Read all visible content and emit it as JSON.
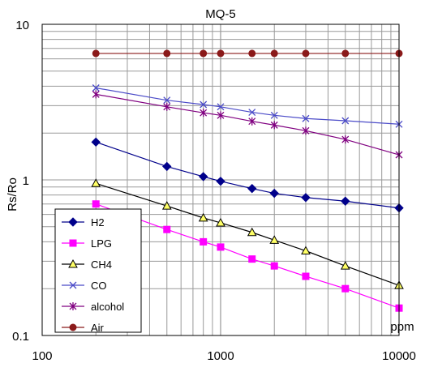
{
  "chart_data": {
    "type": "line",
    "title": "MQ-5",
    "xlabel": "ppm",
    "ylabel": "Rs/Ro",
    "xscale": "log",
    "yscale": "log",
    "xlim": [
      100,
      10000
    ],
    "ylim": [
      0.1,
      10
    ],
    "x_tick_labels": [
      "100",
      "1000",
      "10000"
    ],
    "y_tick_labels": [
      "0.1",
      "1",
      "10"
    ],
    "grid": true,
    "legend_position": "bottom-left",
    "x": [
      200,
      500,
      800,
      1000,
      1500,
      2000,
      3000,
      5000,
      10000
    ],
    "series": [
      {
        "name": "H2",
        "color": "#00008b",
        "marker": "diamond",
        "values": [
          1.75,
          1.22,
          1.05,
          0.98,
          0.88,
          0.82,
          0.77,
          0.73,
          0.66
        ]
      },
      {
        "name": "LPG",
        "color": "#ff00ff",
        "marker": "square",
        "values": [
          0.7,
          0.48,
          0.4,
          0.37,
          0.31,
          0.28,
          0.24,
          0.2,
          0.15
        ]
      },
      {
        "name": "CH4",
        "color": "#000000",
        "marker": "triangle",
        "values": [
          0.95,
          0.68,
          0.57,
          0.53,
          0.46,
          0.41,
          0.35,
          0.28,
          0.21
        ]
      },
      {
        "name": "CO",
        "color": "#4b4bc8",
        "marker": "x",
        "values": [
          3.9,
          3.25,
          3.05,
          2.95,
          2.72,
          2.6,
          2.48,
          2.4,
          2.28
        ]
      },
      {
        "name": "alcohol",
        "color": "#800080",
        "marker": "star",
        "values": [
          3.55,
          2.95,
          2.7,
          2.6,
          2.38,
          2.25,
          2.07,
          1.82,
          1.45
        ]
      },
      {
        "name": "Air",
        "color": "#8b1a1a",
        "marker": "circle",
        "values": [
          6.5,
          6.5,
          6.5,
          6.5,
          6.5,
          6.5,
          6.5,
          6.5,
          6.5
        ]
      }
    ]
  }
}
